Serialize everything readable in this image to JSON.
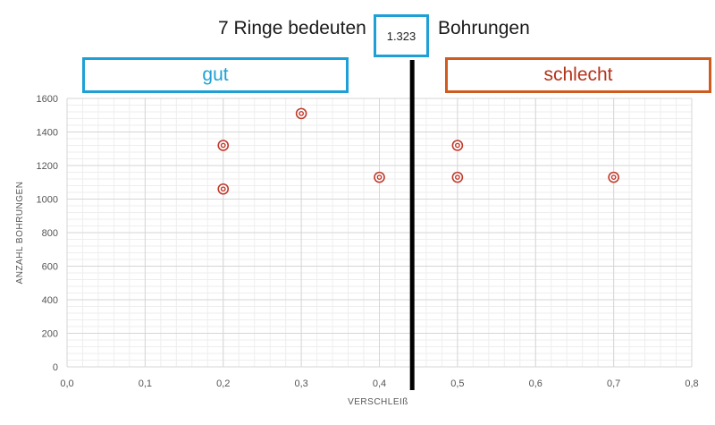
{
  "header": {
    "prefix": "7 Ringe bedeuten",
    "value": "1.323",
    "suffix": "Bohrungen"
  },
  "labels": {
    "good": "gut",
    "bad": "schlecht"
  },
  "colors": {
    "good": "#1ea0d6",
    "bad": "#b4331a",
    "marker": "#c0392b",
    "divider": "#000000"
  },
  "chart_data": {
    "type": "scatter",
    "xlabel": "VERSCHLEIß",
    "ylabel": "ANZAHL BOHRUNGEN",
    "xlim": [
      0,
      0.8
    ],
    "ylim": [
      0,
      1600
    ],
    "x_ticks": [
      "0,0",
      "0,1",
      "0,2",
      "0,3",
      "0,4",
      "0,5",
      "0,6",
      "0,7",
      "0,8"
    ],
    "y_ticks": [
      "0",
      "200",
      "400",
      "600",
      "800",
      "1000",
      "1200",
      "1400",
      "1600"
    ],
    "grid": true,
    "divider_x": 0.45,
    "points": [
      {
        "x": 0.2,
        "y": 1320
      },
      {
        "x": 0.2,
        "y": 1060
      },
      {
        "x": 0.3,
        "y": 1510
      },
      {
        "x": 0.4,
        "y": 1130
      },
      {
        "x": 0.5,
        "y": 1320
      },
      {
        "x": 0.5,
        "y": 1130
      },
      {
        "x": 0.7,
        "y": 1130
      }
    ]
  }
}
